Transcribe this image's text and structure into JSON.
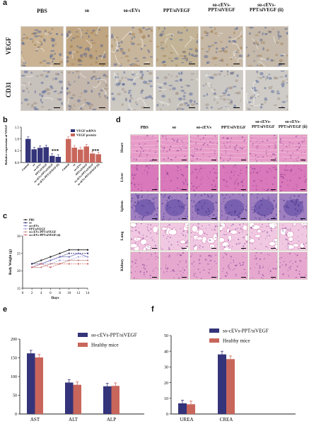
{
  "panels": {
    "a": {
      "label": "a",
      "col_headers": [
        "PBS",
        "so",
        "so-cEVs",
        "PPT/siVEGF",
        "so-cEVs-\nPPT/siVEGF",
        "so-cEVs-\nPPT/siVEGF (ii)"
      ],
      "row_headers": [
        "VEGF",
        "CD31"
      ],
      "row_colors": [
        [
          "#c9b394",
          "#bfa581",
          "#c8b69c",
          "#c3b497",
          "#c6b8a5",
          "#c4b9aa"
        ],
        [
          "#c8c2bc",
          "#c4b8ac",
          "#ccc8c2",
          "#c9c5bf",
          "#ccc9c4",
          "#cfccc7"
        ]
      ]
    },
    "b": {
      "label": "b",
      "chart_data": {
        "type": "bar",
        "ylabel": "Relative expression of VEGF",
        "ylim": [
          0,
          1.5
        ],
        "yticks": [
          "0.0",
          "0.5",
          "1.0",
          "1.5"
        ],
        "categories": [
          "Control",
          "so",
          "so-cEVs",
          "PPT/siVEGF",
          "so-cEVs-PPT/siVEGF",
          "so-cEVs-PPT/siVEGF (ii)"
        ],
        "series": [
          {
            "name": "VEGF mRNA",
            "color": "#34347a",
            "values": [
              1.0,
              0.56,
              0.62,
              0.65,
              0.28,
              0.24
            ]
          },
          {
            "name": "VEGF protein",
            "color": "#c9665b",
            "values": [
              1.0,
              0.63,
              0.55,
              0.68,
              0.38,
              0.35
            ]
          }
        ],
        "annotations": [
          "***",
          "***"
        ]
      }
    },
    "c": {
      "label": "c",
      "chart_data": {
        "type": "line",
        "xlabel": "Days",
        "ylabel": "Body Weight (g)",
        "xlim": [
          0,
          14
        ],
        "ylim": [
          15,
          30
        ],
        "xticks": [
          0,
          2,
          4,
          6,
          8,
          10,
          12,
          14
        ],
        "yticks": [
          15,
          20,
          25,
          30
        ],
        "x": [
          2,
          4,
          6,
          8,
          10,
          12,
          14
        ],
        "series": [
          {
            "name": "PBS",
            "color": "#1b1b1b",
            "values": [
              22,
              23,
              24,
              25,
              26,
              26,
              26
            ]
          },
          {
            "name": "so",
            "color": "#2d2d7a",
            "values": [
              22,
              22,
              23,
              24,
              25,
              25,
              25
            ]
          },
          {
            "name": "so-cEVs",
            "color": "#7a7ac0",
            "values": [
              21,
              22,
              23,
              24,
              24,
              25,
              24
            ]
          },
          {
            "name": "PPT/siVEGF",
            "color": "#a39ed6",
            "values": [
              21,
              22,
              22,
              23,
              23,
              24,
              24
            ]
          },
          {
            "name": "so-cEVs-PPT/siVEGF",
            "color": "#c48a86",
            "values": [
              21,
              21,
              22,
              22,
              23,
              23,
              23
            ]
          },
          {
            "name": "so-cEVs-PPT/siVEGF (ii)",
            "color": "#d46a6a",
            "values": [
              21,
              22,
              21,
              22,
              22,
              22,
              22
            ]
          }
        ]
      }
    },
    "d": {
      "label": "d",
      "col_headers": [
        "PBS",
        "so",
        "so-cEVs",
        "PPT/siVEGF",
        "so-cEVs-\nPPT/siVEGF",
        "so-cEVs-\nPPT/siVEGF (ii)"
      ],
      "row_headers": [
        "Heart",
        "Liver",
        "Spleen",
        "Lung",
        "Kidney"
      ],
      "row_colors": [
        "#e79bc8",
        "#d978ba",
        "#9f7fc0",
        "#f1c8e2",
        "#e7a8d0"
      ]
    },
    "e": {
      "label": "e",
      "chart_data": {
        "type": "bar",
        "categories": [
          "AST",
          "ALT",
          "ALP"
        ],
        "ylim": [
          0,
          200
        ],
        "yticks": [
          "0",
          "50",
          "100",
          "150",
          "200"
        ],
        "series": [
          {
            "name": "so-cEVs-PPT/siVEGF",
            "color": "#34347a",
            "values": [
              162,
              84,
              74
            ]
          },
          {
            "name": "Healthy mice",
            "color": "#c9665b",
            "values": [
              151,
              78,
              75
            ]
          }
        ]
      }
    },
    "f": {
      "label": "f",
      "chart_data": {
        "type": "bar",
        "categories": [
          "UREA",
          "CREA"
        ],
        "ylim": [
          0,
          50
        ],
        "yticks": [
          "0",
          "10",
          "20",
          "30",
          "40",
          "50"
        ],
        "series": [
          {
            "name": "so-cEVs-PPT/siVEGF",
            "color": "#34347a",
            "values": [
              6.8,
              38
            ]
          },
          {
            "name": "Healthy mice",
            "color": "#c9665b",
            "values": [
              6.2,
              35
            ]
          }
        ]
      }
    }
  }
}
